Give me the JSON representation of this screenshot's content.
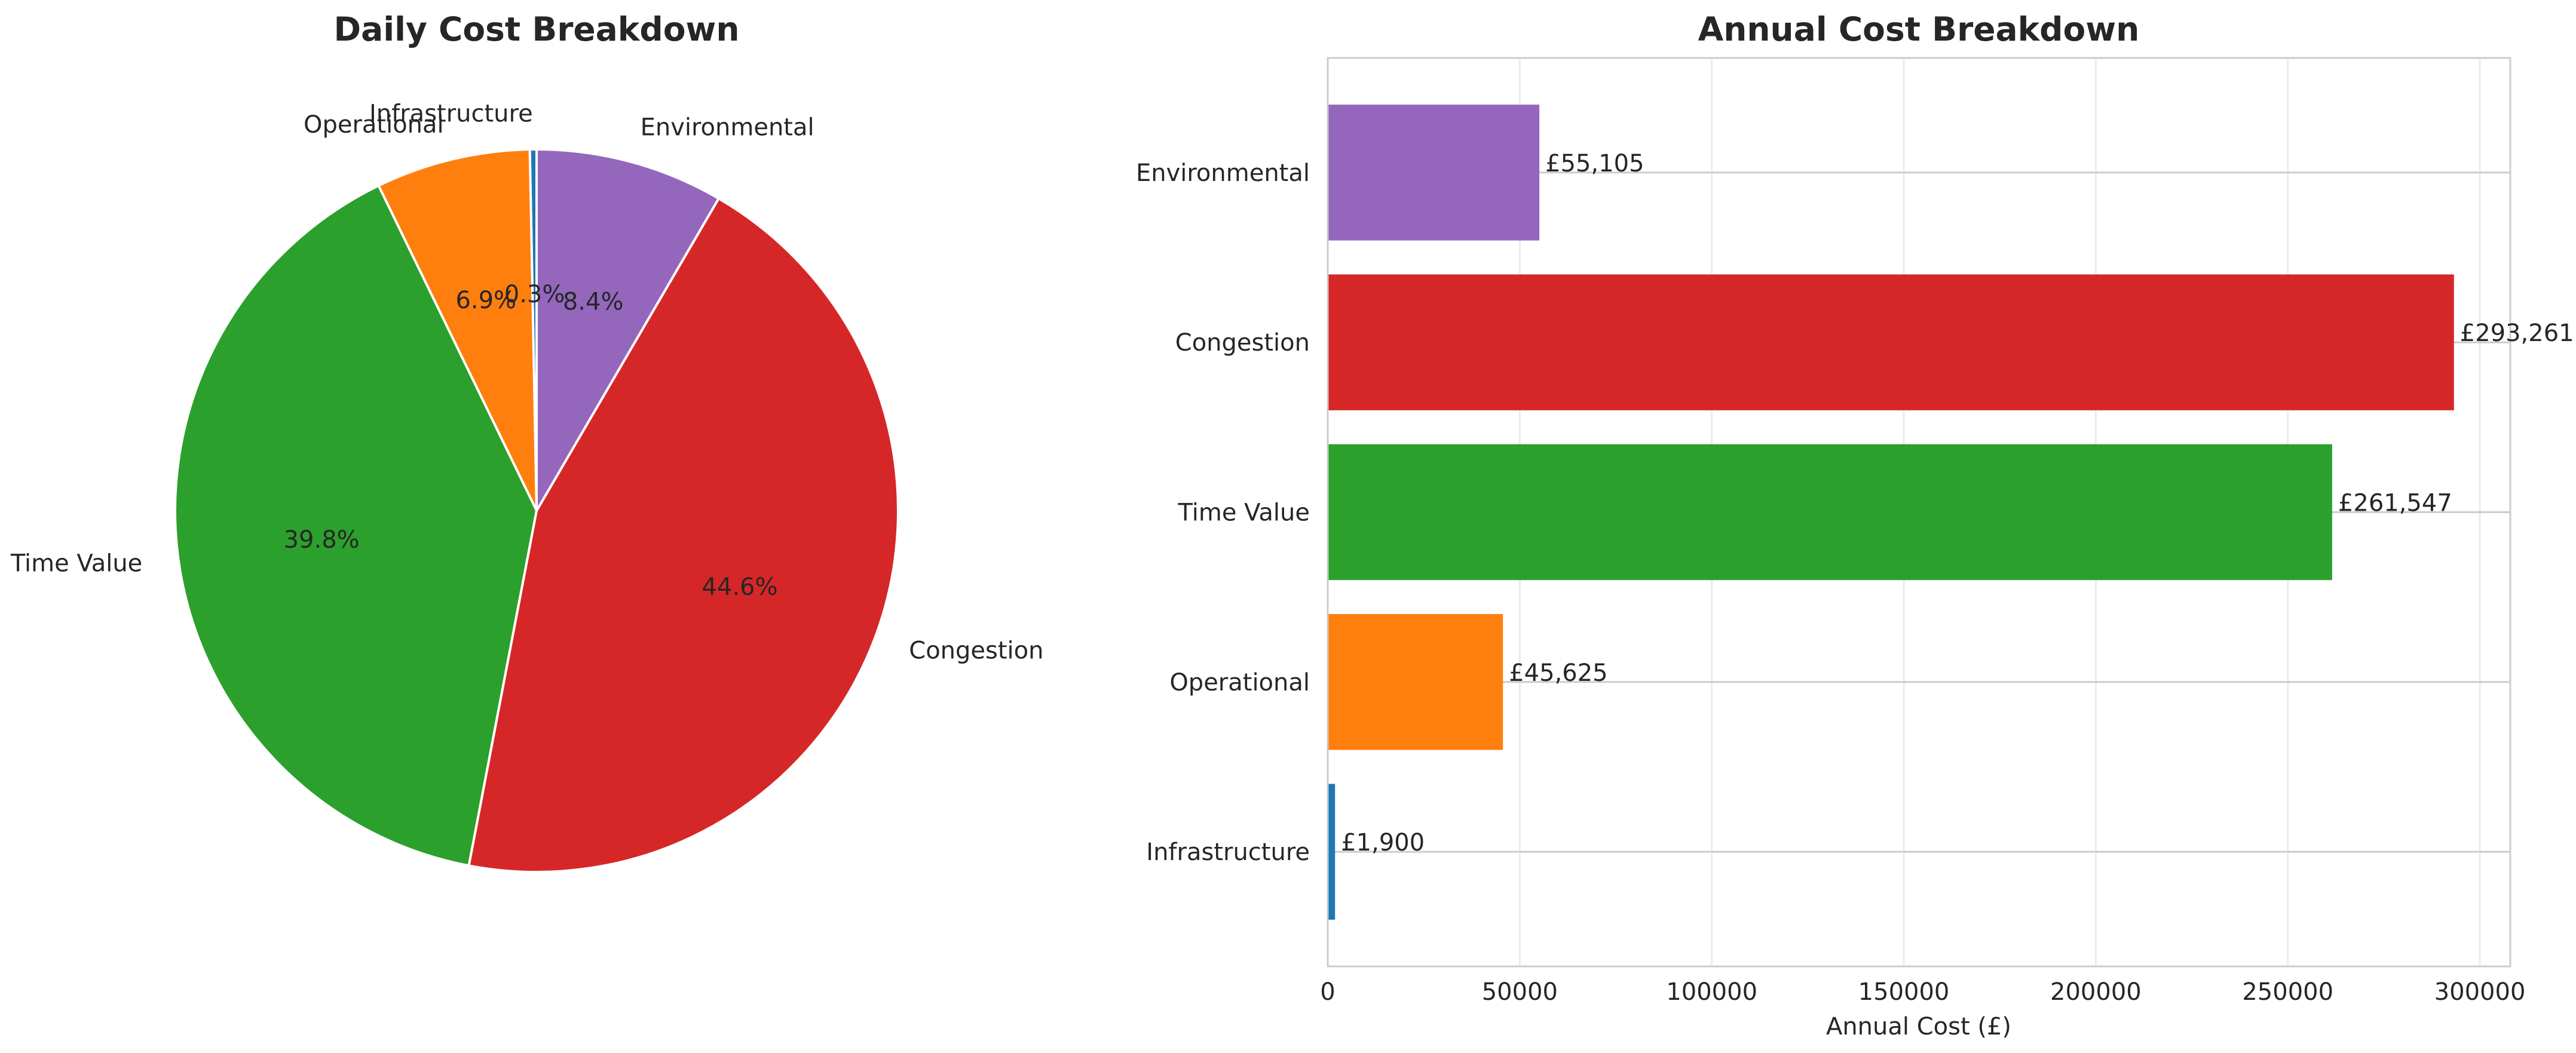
{
  "chart_data": [
    {
      "type": "pie",
      "title": "Daily Cost Breakdown",
      "categories": [
        "Infrastructure",
        "Operational",
        "Time Value",
        "Congestion",
        "Environmental"
      ],
      "percent_labels": [
        "0.3%",
        "6.9%",
        "39.8%",
        "44.6%",
        "8.4%"
      ],
      "values": [
        0.3,
        6.9,
        39.8,
        44.6,
        8.4
      ],
      "colors": [
        "#1f77b4",
        "#ff7f0e",
        "#2ca02c",
        "#d62728",
        "#9467bd"
      ],
      "start_angle_deg": 90,
      "direction": "counterclockwise"
    },
    {
      "type": "bar",
      "orientation": "horizontal",
      "title": "Annual Cost Breakdown",
      "categories": [
        "Infrastructure",
        "Operational",
        "Time Value",
        "Congestion",
        "Environmental"
      ],
      "values": [
        1900,
        45625,
        261547,
        293261,
        55105
      ],
      "value_labels": [
        "£1,900",
        "£45,625",
        "£261,547",
        "£293,261",
        "£55,105"
      ],
      "colors": [
        "#1f77b4",
        "#ff7f0e",
        "#2ca02c",
        "#d62728",
        "#9467bd"
      ],
      "xlabel": "Annual Cost (£)",
      "ylabel": "",
      "xlim": [
        0,
        307925
      ],
      "xticks": [
        0,
        50000,
        100000,
        150000,
        200000,
        250000,
        300000
      ],
      "xtick_labels": [
        "0",
        "50000",
        "100000",
        "150000",
        "200000",
        "250000",
        "300000"
      ],
      "grid": true
    }
  ]
}
